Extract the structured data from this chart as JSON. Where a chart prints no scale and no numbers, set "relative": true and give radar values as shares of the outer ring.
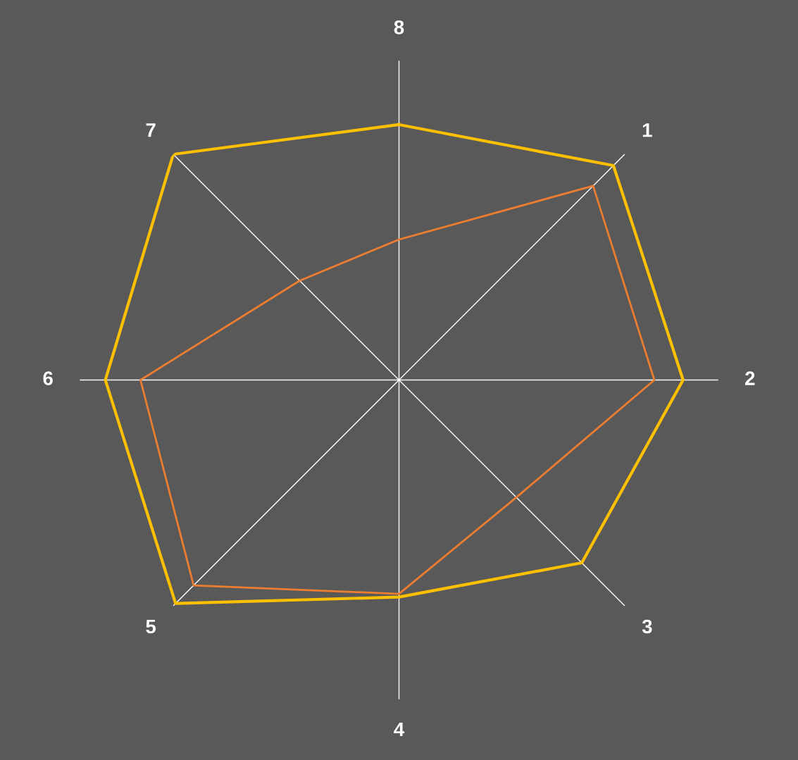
{
  "chart_data": {
    "type": "radar",
    "relative": true,
    "categories": [
      "8",
      "1",
      "2",
      "3",
      "4",
      "5",
      "6",
      "7"
    ],
    "grid": "x",
    "legend": false,
    "series": [
      {
        "color": "#ffc000",
        "values": [
          0.8,
          0.95,
          0.89,
          0.81,
          0.68,
          0.99,
          0.92,
          1.0
        ]
      },
      {
        "color": "#ed7d31",
        "values": [
          0.44,
          0.86,
          0.8,
          0.52,
          0.67,
          0.91,
          0.81,
          0.44
        ]
      }
    ]
  }
}
